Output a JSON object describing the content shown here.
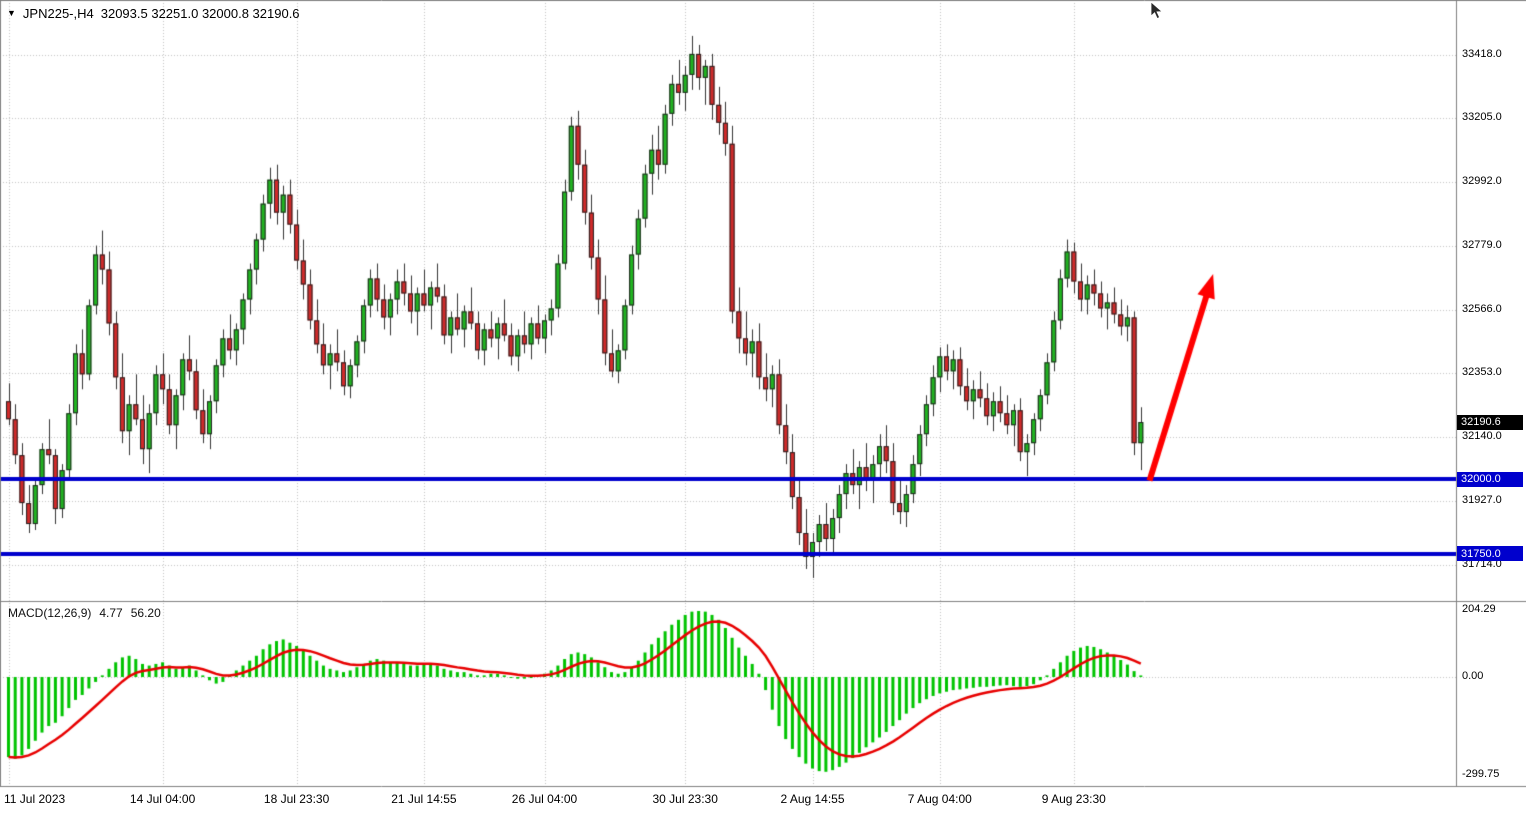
{
  "colors": {
    "background": "#ffffff",
    "grid": "#c4c4c4",
    "divider": "#808080",
    "candle_up": "#21b421",
    "candle_down": "#d02a2a",
    "candle_border": "#222222",
    "wick": "#333333",
    "hline": "#0000cd",
    "arrow": "#ff0000",
    "hist": "#00c400",
    "signal": "#e80000",
    "current_badge_bg": "#000000"
  },
  "symbol_bar": {
    "dropdown_icon": "triangle-down-icon",
    "symbol_text": "JPN225-,H4",
    "ohlc_text": "32093.5 32251.0 32000.8 32190.6"
  },
  "chart_data": {
    "type": "candlestick",
    "symbol": "JPN225-",
    "timeframe": "H4",
    "current_price": 32190.6,
    "current_price_label": "32190.6",
    "price_axis": {
      "labels": [
        33418.0,
        33205.0,
        32992.0,
        32779.0,
        32566.0,
        32353.0,
        32140.0,
        31927.0,
        31714.0
      ],
      "visible_max": 33600,
      "visible_min": 31593
    },
    "hlines": [
      {
        "price": 32000.0,
        "label": "32000.0"
      },
      {
        "price": 31750.0,
        "label": "31750.0"
      }
    ],
    "time_axis": [
      {
        "label": "11 Jul 2023",
        "index": 0
      },
      {
        "label": "14 Jul 04:00",
        "index": 23
      },
      {
        "label": "18 Jul 23:30",
        "index": 43
      },
      {
        "label": "21 Jul 14:55",
        "index": 62
      },
      {
        "label": "26 Jul 04:00",
        "index": 80
      },
      {
        "label": "30 Jul 23:30",
        "index": 101
      },
      {
        "label": "2 Aug 14:55",
        "index": 120
      },
      {
        "label": "7 Aug 04:00",
        "index": 139
      },
      {
        "label": "9 Aug 23:30",
        "index": 159
      }
    ],
    "arrow": {
      "from": {
        "index": 170.3,
        "price": 31995
      },
      "to": {
        "index": 179.8,
        "price": 32685
      },
      "width": 6
    },
    "candles": [
      [
        32260,
        32320,
        32180,
        32200
      ],
      [
        32200,
        32250,
        32050,
        32080
      ],
      [
        32080,
        32120,
        31880,
        31920
      ],
      [
        31920,
        31980,
        31820,
        31850
      ],
      [
        31850,
        32000,
        31830,
        31980
      ],
      [
        31980,
        32120,
        31950,
        32100
      ],
      [
        32100,
        32200,
        32050,
        32080
      ],
      [
        32080,
        32100,
        31850,
        31900
      ],
      [
        31900,
        32050,
        31870,
        32030
      ],
      [
        32030,
        32250,
        32000,
        32220
      ],
      [
        32220,
        32450,
        32180,
        32420
      ],
      [
        32420,
        32500,
        32300,
        32350
      ],
      [
        32350,
        32600,
        32330,
        32580
      ],
      [
        32580,
        32780,
        32550,
        32750
      ],
      [
        32750,
        32830,
        32650,
        32700
      ],
      [
        32700,
        32760,
        32480,
        32520
      ],
      [
        32520,
        32560,
        32300,
        32340
      ],
      [
        32340,
        32420,
        32120,
        32160
      ],
      [
        32160,
        32280,
        32080,
        32250
      ],
      [
        32250,
        32350,
        32180,
        32200
      ],
      [
        32200,
        32280,
        32050,
        32100
      ],
      [
        32100,
        32250,
        32020,
        32220
      ],
      [
        32220,
        32380,
        32180,
        32350
      ],
      [
        32350,
        32420,
        32250,
        32300
      ],
      [
        32300,
        32350,
        32150,
        32180
      ],
      [
        32180,
        32300,
        32100,
        32280
      ],
      [
        32280,
        32420,
        32230,
        32400
      ],
      [
        32400,
        32480,
        32330,
        32360
      ],
      [
        32360,
        32400,
        32200,
        32230
      ],
      [
        32230,
        32300,
        32120,
        32150
      ],
      [
        32150,
        32280,
        32100,
        32260
      ],
      [
        32260,
        32400,
        32220,
        32380
      ],
      [
        32380,
        32500,
        32340,
        32470
      ],
      [
        32470,
        32550,
        32400,
        32430
      ],
      [
        32430,
        32520,
        32380,
        32500
      ],
      [
        32500,
        32620,
        32450,
        32600
      ],
      [
        32600,
        32720,
        32550,
        32700
      ],
      [
        32700,
        32820,
        32650,
        32800
      ],
      [
        32800,
        32950,
        32760,
        32920
      ],
      [
        32920,
        33040,
        32870,
        33000
      ],
      [
        33000,
        33050,
        32850,
        32890
      ],
      [
        32890,
        32980,
        32800,
        32950
      ],
      [
        32950,
        33000,
        32820,
        32850
      ],
      [
        32850,
        32900,
        32700,
        32730
      ],
      [
        32730,
        32800,
        32600,
        32650
      ],
      [
        32650,
        32700,
        32500,
        32530
      ],
      [
        32530,
        32600,
        32420,
        32450
      ],
      [
        32450,
        32520,
        32350,
        32380
      ],
      [
        32380,
        32450,
        32300,
        32420
      ],
      [
        32420,
        32500,
        32360,
        32390
      ],
      [
        32390,
        32430,
        32280,
        32310
      ],
      [
        32310,
        32400,
        32270,
        32380
      ],
      [
        32380,
        32480,
        32340,
        32460
      ],
      [
        32460,
        32600,
        32420,
        32580
      ],
      [
        32580,
        32700,
        32540,
        32670
      ],
      [
        32670,
        32720,
        32560,
        32600
      ],
      [
        32600,
        32650,
        32500,
        32540
      ],
      [
        32540,
        32620,
        32480,
        32600
      ],
      [
        32600,
        32700,
        32550,
        32660
      ],
      [
        32660,
        32720,
        32580,
        32620
      ],
      [
        32620,
        32680,
        32520,
        32560
      ],
      [
        32560,
        32640,
        32480,
        32620
      ],
      [
        32620,
        32700,
        32560,
        32580
      ],
      [
        32580,
        32660,
        32500,
        32640
      ],
      [
        32640,
        32720,
        32590,
        32610
      ],
      [
        32610,
        32650,
        32450,
        32480
      ],
      [
        32480,
        32560,
        32420,
        32540
      ],
      [
        32540,
        32620,
        32480,
        32500
      ],
      [
        32500,
        32580,
        32440,
        32560
      ],
      [
        32560,
        32640,
        32500,
        32520
      ],
      [
        32520,
        32560,
        32400,
        32430
      ],
      [
        32430,
        32520,
        32380,
        32500
      ],
      [
        32500,
        32560,
        32440,
        32470
      ],
      [
        32470,
        32540,
        32400,
        32520
      ],
      [
        32520,
        32600,
        32460,
        32480
      ],
      [
        32480,
        32520,
        32380,
        32410
      ],
      [
        32410,
        32500,
        32360,
        32480
      ],
      [
        32480,
        32560,
        32420,
        32450
      ],
      [
        32450,
        32540,
        32400,
        32520
      ],
      [
        32520,
        32580,
        32450,
        32470
      ],
      [
        32470,
        32550,
        32420,
        32530
      ],
      [
        32530,
        32600,
        32480,
        32570
      ],
      [
        32570,
        32750,
        32540,
        32720
      ],
      [
        32720,
        33000,
        32700,
        32960
      ],
      [
        32960,
        33210,
        32930,
        33180
      ],
      [
        33180,
        33230,
        33000,
        33050
      ],
      [
        33050,
        33100,
        32850,
        32890
      ],
      [
        32890,
        32950,
        32700,
        32740
      ],
      [
        32740,
        32800,
        32550,
        32600
      ],
      [
        32600,
        32680,
        32380,
        32420
      ],
      [
        32420,
        32500,
        32340,
        32360
      ],
      [
        32360,
        32450,
        32320,
        32430
      ],
      [
        32430,
        32600,
        32400,
        32580
      ],
      [
        32580,
        32780,
        32550,
        32750
      ],
      [
        32750,
        32900,
        32700,
        32870
      ],
      [
        32870,
        33050,
        32840,
        33020
      ],
      [
        33020,
        33150,
        32950,
        33100
      ],
      [
        33100,
        33180,
        33000,
        33050
      ],
      [
        33050,
        33250,
        33020,
        33220
      ],
      [
        33220,
        33350,
        33180,
        33320
      ],
      [
        33320,
        33400,
        33250,
        33290
      ],
      [
        33290,
        33380,
        33230,
        33350
      ],
      [
        33350,
        33480,
        33300,
        33420
      ],
      [
        33420,
        33450,
        33300,
        33340
      ],
      [
        33340,
        33400,
        33250,
        33380
      ],
      [
        33380,
        33420,
        33200,
        33250
      ],
      [
        33250,
        33310,
        33150,
        33190
      ],
      [
        33190,
        33260,
        33080,
        33120
      ],
      [
        33120,
        33180,
        32520,
        32560
      ],
      [
        32560,
        32640,
        32420,
        32470
      ],
      [
        32470,
        32560,
        32380,
        32420
      ],
      [
        32420,
        32500,
        32340,
        32460
      ],
      [
        32460,
        32520,
        32300,
        32340
      ],
      [
        32340,
        32420,
        32260,
        32300
      ],
      [
        32300,
        32380,
        32240,
        32350
      ],
      [
        32350,
        32400,
        32150,
        32180
      ],
      [
        32180,
        32250,
        32050,
        32090
      ],
      [
        32090,
        32150,
        31900,
        31940
      ],
      [
        31940,
        32000,
        31780,
        31820
      ],
      [
        31820,
        31900,
        31700,
        31740
      ],
      [
        31740,
        31820,
        31670,
        31790
      ],
      [
        31790,
        31880,
        31740,
        31850
      ],
      [
        31850,
        31920,
        31760,
        31800
      ],
      [
        31800,
        31900,
        31750,
        31870
      ],
      [
        31870,
        31980,
        31820,
        31950
      ],
      [
        31950,
        32050,
        31900,
        32020
      ],
      [
        32020,
        32100,
        31950,
        31980
      ],
      [
        31980,
        32060,
        31900,
        32040
      ],
      [
        32040,
        32120,
        31960,
        32000
      ],
      [
        32000,
        32080,
        31920,
        32050
      ],
      [
        32050,
        32150,
        32000,
        32110
      ],
      [
        32110,
        32180,
        32020,
        32060
      ],
      [
        32060,
        32120,
        31880,
        31920
      ],
      [
        31920,
        32000,
        31850,
        31890
      ],
      [
        31890,
        31980,
        31840,
        31950
      ],
      [
        31950,
        32080,
        31920,
        32050
      ],
      [
        32050,
        32180,
        32010,
        32150
      ],
      [
        32150,
        32280,
        32110,
        32250
      ],
      [
        32250,
        32380,
        32210,
        32340
      ],
      [
        32340,
        32440,
        32290,
        32410
      ],
      [
        32410,
        32450,
        32330,
        32360
      ],
      [
        32360,
        32430,
        32300,
        32400
      ],
      [
        32400,
        32440,
        32280,
        32310
      ],
      [
        32310,
        32370,
        32230,
        32260
      ],
      [
        32260,
        32330,
        32200,
        32300
      ],
      [
        32300,
        32360,
        32240,
        32270
      ],
      [
        32270,
        32320,
        32180,
        32210
      ],
      [
        32210,
        32290,
        32160,
        32260
      ],
      [
        32260,
        32310,
        32190,
        32220
      ],
      [
        32220,
        32280,
        32150,
        32180
      ],
      [
        32180,
        32250,
        32110,
        32230
      ],
      [
        32230,
        32270,
        32060,
        32090
      ],
      [
        32090,
        32150,
        32010,
        32120
      ],
      [
        32120,
        32220,
        32080,
        32200
      ],
      [
        32200,
        32300,
        32160,
        32280
      ],
      [
        32280,
        32420,
        32250,
        32390
      ],
      [
        32390,
        32560,
        32360,
        32530
      ],
      [
        32530,
        32700,
        32500,
        32670
      ],
      [
        32670,
        32800,
        32640,
        32760
      ],
      [
        32760,
        32790,
        32620,
        32660
      ],
      [
        32660,
        32720,
        32560,
        32600
      ],
      [
        32600,
        32680,
        32550,
        32650
      ],
      [
        32650,
        32700,
        32580,
        32620
      ],
      [
        32620,
        32660,
        32540,
        32570
      ],
      [
        32570,
        32620,
        32500,
        32590
      ],
      [
        32590,
        32640,
        32520,
        32550
      ],
      [
        32550,
        32600,
        32480,
        32510
      ],
      [
        32510,
        32580,
        32460,
        32540
      ],
      [
        32540,
        32560,
        32080,
        32120
      ],
      [
        32120,
        32240,
        32030,
        32190.6
      ]
    ],
    "macd": {
      "name": "MACD(12,26,9)",
      "params": [
        12,
        26,
        9
      ],
      "value_main": "4.77",
      "value_signal": "56.20",
      "axis_labels": [
        204.29,
        0.0,
        -299.75
      ],
      "visible_max": 232.6,
      "visible_min": -333.5,
      "histogram": [
        -245,
        -250,
        -240,
        -220,
        -195,
        -170,
        -150,
        -140,
        -120,
        -95,
        -70,
        -55,
        -35,
        -15,
        5,
        25,
        45,
        60,
        65,
        55,
        40,
        35,
        40,
        45,
        35,
        25,
        30,
        35,
        20,
        5,
        -10,
        -20,
        -15,
        5,
        20,
        35,
        50,
        65,
        85,
        100,
        110,
        115,
        105,
        95,
        80,
        65,
        50,
        35,
        25,
        20,
        15,
        20,
        30,
        40,
        50,
        55,
        50,
        45,
        45,
        40,
        35,
        35,
        40,
        40,
        35,
        25,
        20,
        15,
        15,
        10,
        5,
        5,
        10,
        10,
        5,
        0,
        -5,
        -5,
        0,
        5,
        10,
        20,
        35,
        55,
        70,
        75,
        70,
        60,
        45,
        30,
        15,
        10,
        15,
        30,
        50,
        75,
        100,
        120,
        140,
        160,
        175,
        190,
        200,
        202,
        200,
        190,
        175,
        150,
        120,
        90,
        65,
        40,
        10,
        -40,
        -100,
        -150,
        -190,
        -220,
        -245,
        -265,
        -280,
        -288,
        -290,
        -285,
        -275,
        -262,
        -248,
        -232,
        -215,
        -200,
        -185,
        -168,
        -150,
        -132,
        -112,
        -95,
        -80,
        -68,
        -58,
        -50,
        -45,
        -40,
        -38,
        -35,
        -33,
        -30,
        -30,
        -28,
        -26,
        -25,
        -28,
        -30,
        -28,
        -22,
        -10,
        5,
        25,
        45,
        65,
        80,
        90,
        95,
        92,
        85,
        75,
        65,
        52,
        38,
        18,
        4.77
      ]
    }
  }
}
